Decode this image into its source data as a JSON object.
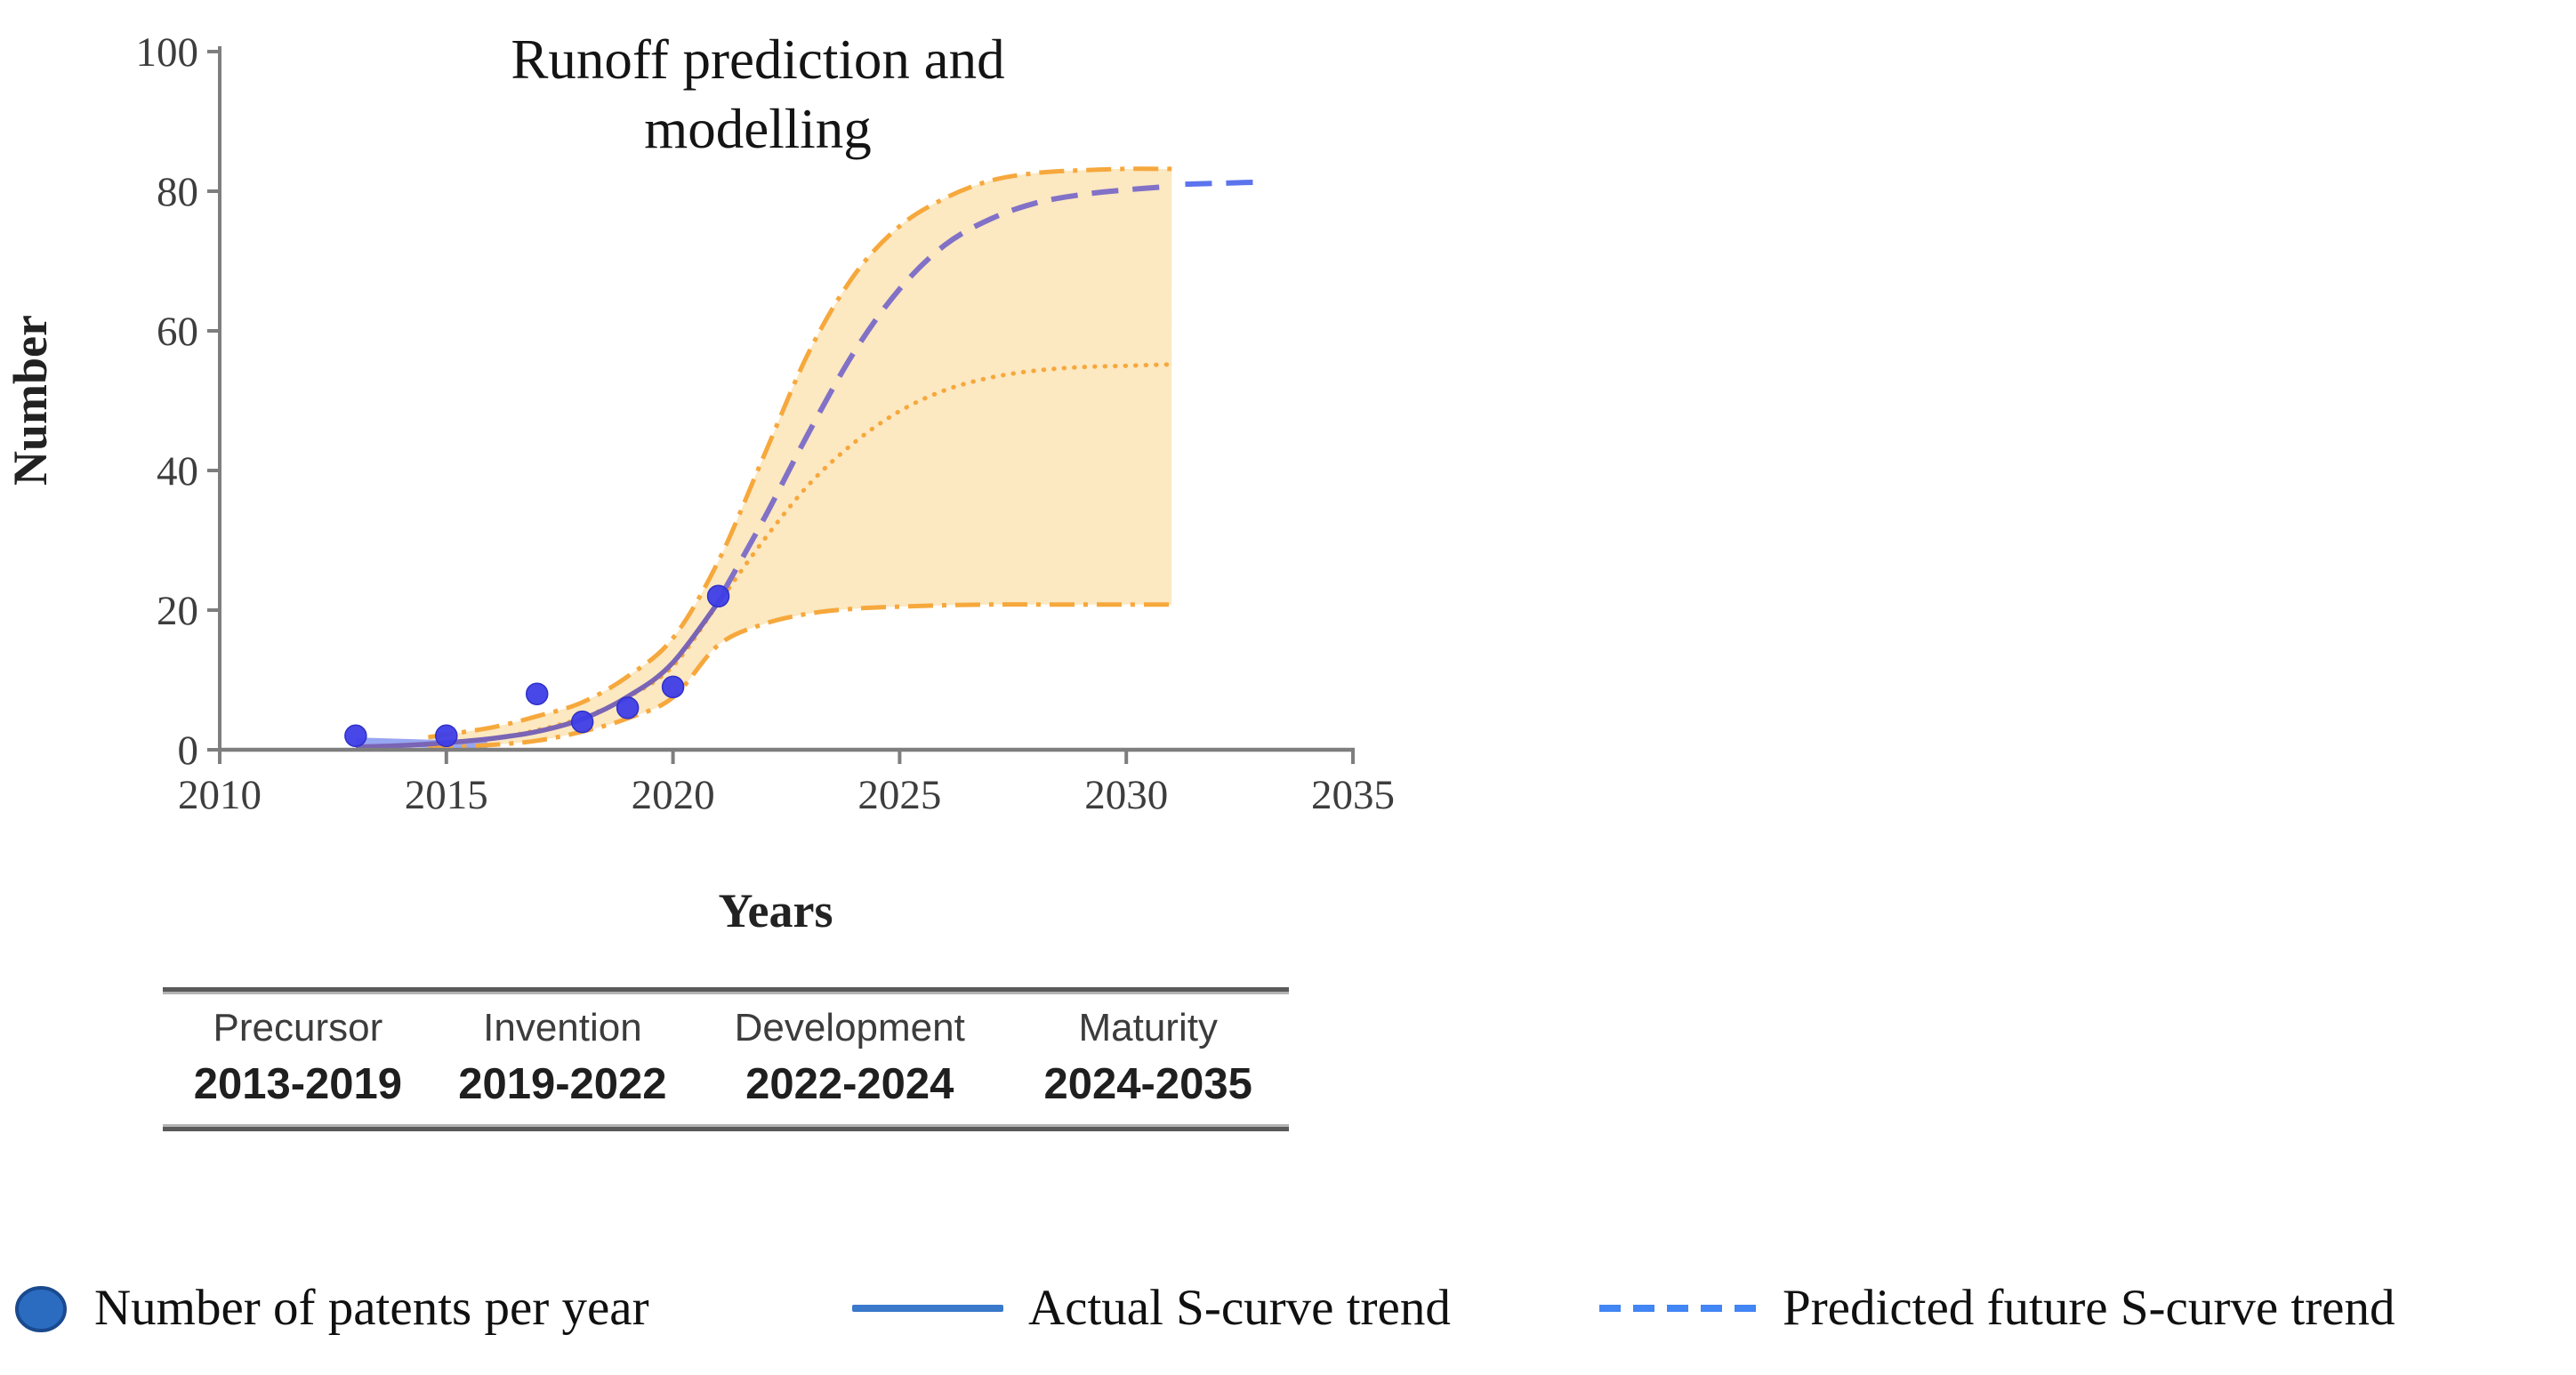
{
  "figure": {
    "title_line1": "Runoff prediction and",
    "title_line2": "modelling"
  },
  "chart_data": {
    "type": "scatter+line",
    "title": "Runoff prediction and modelling",
    "xlabel": "Years",
    "ylabel": "Number",
    "xlim": [
      2010,
      2035
    ],
    "ylim": [
      0,
      100
    ],
    "x_ticks": [
      2010,
      2015,
      2020,
      2025,
      2030,
      2035
    ],
    "y_ticks": [
      0,
      20,
      40,
      60,
      80,
      100
    ],
    "grid": false,
    "scatter": {
      "name": "Number of patents per year",
      "color": "#3e3ee8",
      "x": [
        2013,
        2015,
        2017,
        2018,
        2019,
        2020,
        2021
      ],
      "y": [
        2,
        2,
        8,
        4,
        6,
        9,
        22
      ]
    },
    "band": {
      "name": "prediction confidence band",
      "fill": "#fbe2b2",
      "opacity": 0.8,
      "x_end": 2031
    },
    "series": [
      {
        "name": "actual-trend-early-segment",
        "style": "solid",
        "color": "#97a6f0",
        "width": 9,
        "points": [
          [
            2013,
            1.2
          ],
          [
            2015.9,
            0.6
          ]
        ]
      },
      {
        "name": "confidence-lower-bound",
        "style": "dashdot",
        "color": "#f6a83c",
        "width": 5,
        "points": [
          [
            2014.6,
            0.2
          ],
          [
            2016,
            0.7
          ],
          [
            2017,
            1.3
          ],
          [
            2018,
            2.6
          ],
          [
            2019,
            4.5
          ],
          [
            2020,
            7.5
          ],
          [
            2021,
            15
          ],
          [
            2022,
            18
          ],
          [
            2023,
            19.5
          ],
          [
            2024,
            20.2
          ],
          [
            2025,
            20.5
          ],
          [
            2026,
            20.7
          ],
          [
            2027,
            20.8
          ],
          [
            2028,
            20.8
          ],
          [
            2029,
            20.8
          ],
          [
            2030,
            20.8
          ],
          [
            2031,
            20.8
          ]
        ]
      },
      {
        "name": "confidence-upper-bound",
        "style": "dashdot",
        "color": "#f6a83c",
        "width": 5,
        "points": [
          [
            2014.6,
            1.8
          ],
          [
            2016,
            3.2
          ],
          [
            2017,
            4.8
          ],
          [
            2018,
            6.8
          ],
          [
            2019,
            10.5
          ],
          [
            2020,
            16
          ],
          [
            2021,
            27
          ],
          [
            2022,
            42
          ],
          [
            2023,
            57
          ],
          [
            2024,
            68
          ],
          [
            2025,
            75
          ],
          [
            2026,
            79
          ],
          [
            2027,
            81.5
          ],
          [
            2028,
            82.6
          ],
          [
            2029,
            83
          ],
          [
            2030,
            83.2
          ],
          [
            2031,
            83.2
          ]
        ]
      },
      {
        "name": "confidence-median",
        "style": "dotted",
        "color": "#f6a83c",
        "width": 5,
        "points": [
          [
            2014.6,
            0.7
          ],
          [
            2016,
            1.6
          ],
          [
            2017,
            2.8
          ],
          [
            2018,
            4.6
          ],
          [
            2019,
            7.5
          ],
          [
            2020,
            12
          ],
          [
            2021,
            21
          ],
          [
            2022,
            30
          ],
          [
            2023,
            38
          ],
          [
            2024,
            44
          ],
          [
            2025,
            48.5
          ],
          [
            2026,
            51.5
          ],
          [
            2027,
            53.3
          ],
          [
            2028,
            54.3
          ],
          [
            2029,
            54.8
          ],
          [
            2030,
            55
          ],
          [
            2031,
            55.2
          ]
        ]
      },
      {
        "name": "actual-s-curve-trend",
        "style": "solid",
        "color": "#7a64b5",
        "width": 5.5,
        "points": [
          [
            2013,
            0.4
          ],
          [
            2014,
            0.6
          ],
          [
            2015,
            1
          ],
          [
            2016,
            1.6
          ],
          [
            2017,
            2.6
          ],
          [
            2018,
            4.4
          ],
          [
            2019,
            7.6
          ],
          [
            2020,
            12.5
          ],
          [
            2021.2,
            23
          ]
        ]
      },
      {
        "name": "predicted-s-curve",
        "style": "dashed",
        "color": "#8171c7",
        "width": 6,
        "points": [
          [
            2021.1,
            22.5
          ],
          [
            2022,
            33
          ],
          [
            2023,
            45.5
          ],
          [
            2024,
            57
          ],
          [
            2025,
            66
          ],
          [
            2026,
            72.3
          ],
          [
            2027,
            76
          ],
          [
            2028,
            78.3
          ],
          [
            2029,
            79.5
          ],
          [
            2030,
            80.2
          ],
          [
            2031,
            80.7
          ]
        ]
      },
      {
        "name": "predicted-future-s-curve-trend",
        "style": "dashed",
        "color": "#5b74ee",
        "width": 6,
        "points": [
          [
            2031.3,
            81
          ],
          [
            2032.9,
            81.3
          ]
        ]
      }
    ],
    "band_bounds": {
      "upper": "confidence-upper-bound",
      "lower": "confidence-lower-bound"
    }
  },
  "table": {
    "phases": [
      {
        "name": "Precursor",
        "range": "2013-2019"
      },
      {
        "name": "Invention",
        "range": "2019-2022"
      },
      {
        "name": "Development",
        "range": "2022-2024"
      },
      {
        "name": "Maturity",
        "range": "2024-2035"
      }
    ]
  },
  "legend": {
    "items": [
      {
        "label": "Number of patents per year",
        "swatch": "dot",
        "color": "#2b6cc1",
        "stroke": "#1a4a8e"
      },
      {
        "label": "Actual S-curve trend",
        "swatch": "solid-line",
        "color": "#3a79cb"
      },
      {
        "label": "Predicted future S-curve trend",
        "swatch": "dashed-line",
        "color": "#4285f4"
      }
    ]
  },
  "colors": {
    "axis": "#7e7e7e",
    "tick_text": "#3d3d3d",
    "title_text": "#141414",
    "band_fill": "#fbe2b2",
    "band_line": "#f6a83c",
    "actual_line": "#7a64b5",
    "predicted_line": "#8171c7",
    "future_line": "#5b74ee",
    "point_fill": "#3e3ee8"
  }
}
